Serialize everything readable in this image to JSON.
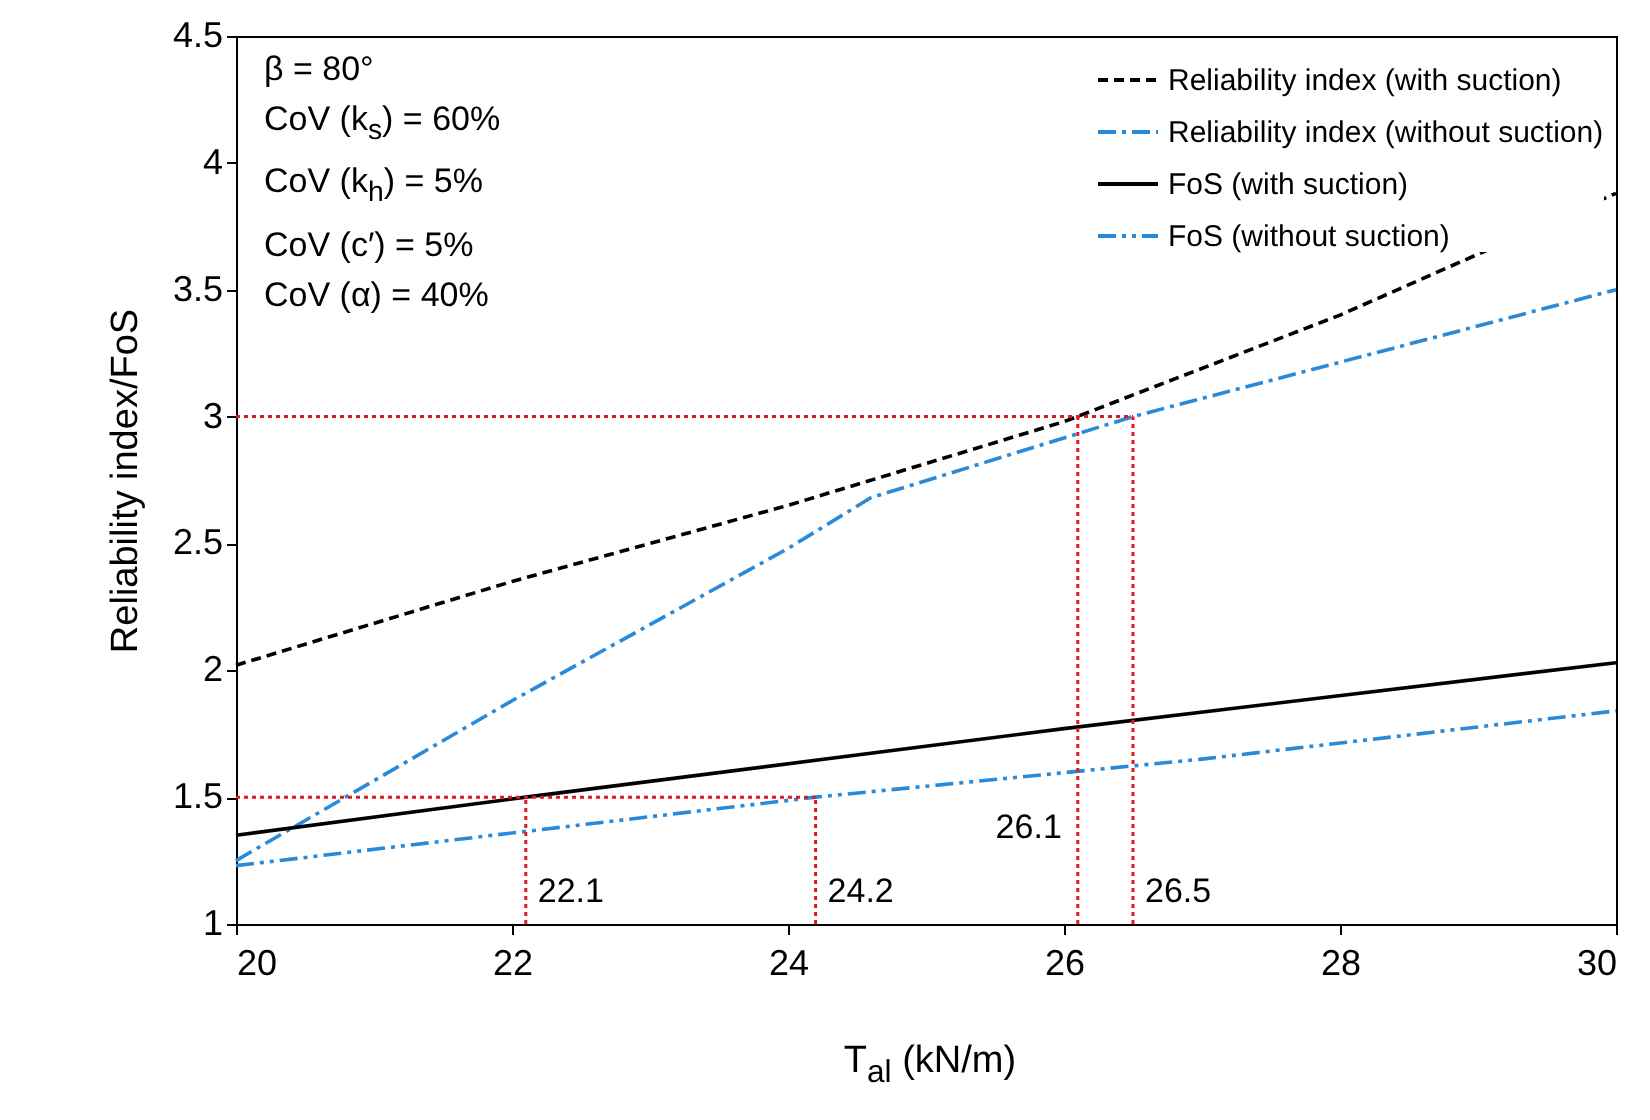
{
  "chart_data": {
    "type": "line",
    "xlabel": "T$_{al}$ (kN/m)",
    "ylabel": "Reliability  index/FoS",
    "series": [
      {
        "name": "Reliability index (with suction)",
        "color": "#000000",
        "line_style": "dashed",
        "x": [
          20,
          22,
          24,
          26,
          28,
          30
        ],
        "values": [
          2.02,
          2.35,
          2.65,
          2.98,
          3.4,
          3.88
        ]
      },
      {
        "name": "Reliability index (without suction)",
        "color": "#2b8ad8",
        "line_style": "dashdot",
        "x": [
          20,
          22,
          24,
          24.6,
          26.5,
          30
        ],
        "values": [
          1.25,
          1.88,
          2.48,
          2.68,
          3.0,
          3.5
        ]
      },
      {
        "name": "FoS (with suction)",
        "color": "#000000",
        "line_style": "solid",
        "x": [
          20,
          22.1,
          26,
          30
        ],
        "values": [
          1.35,
          1.5,
          1.77,
          2.03
        ]
      },
      {
        "name": "FoS (without suction)",
        "color": "#2b8ad8",
        "line_style": "dashdotdot",
        "x": [
          20,
          24.2,
          27,
          30
        ],
        "values": [
          1.23,
          1.5,
          1.65,
          1.84
        ]
      }
    ],
    "xlim": [
      20,
      30
    ],
    "xticks": [
      20,
      22,
      24,
      26,
      28,
      30
    ],
    "ylim": [
      1,
      4.5
    ],
    "yticks": [
      1,
      1.5,
      2,
      2.5,
      3,
      3.5,
      4,
      4.5
    ],
    "ref_lines": [
      {
        "axis": "y",
        "value": 1.5,
        "color": "#e0191d",
        "line_style": "dotted"
      },
      {
        "axis": "y",
        "value": 3,
        "color": "#e0191d",
        "line_style": "dotted"
      },
      {
        "axis": "x",
        "value": 22.1,
        "label": "22.1",
        "color": "#e0191d",
        "line_style": "dotted"
      },
      {
        "axis": "x",
        "value": 24.2,
        "label": "24.2",
        "color": "#e0191d",
        "line_style": "dotted"
      },
      {
        "axis": "x",
        "value": 26.1,
        "label": "26.1",
        "color": "#e0191d",
        "line_style": "dotted"
      },
      {
        "axis": "x",
        "value": 26.5,
        "label": "26.5",
        "color": "#e0191d",
        "line_style": "dotted"
      }
    ],
    "annotations": [
      "β = 80°",
      "CoV (k$_{s}$) = 60%",
      "CoV (k$_{h}$) = 5%",
      "CoV (c′) = 5%",
      "CoV (α) = 40%"
    ],
    "legend": "top right",
    "grid": false
  }
}
